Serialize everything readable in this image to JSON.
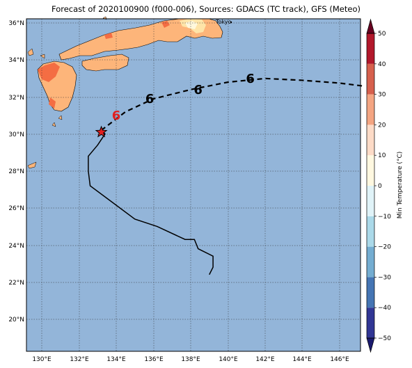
{
  "title": "Forecast of 2020100900 (f000-006), Sources: GDACS (TC track), GFS (Meteo)",
  "map": {
    "lon_ticks": [
      "130°E",
      "132°E",
      "134°E",
      "136°E",
      "138°E",
      "140°E",
      "142°E",
      "144°E",
      "146°E"
    ],
    "lat_ticks": [
      "36°N",
      "34°N",
      "32°N",
      "30°N",
      "28°N",
      "26°N",
      "24°N",
      "22°N",
      "20°N"
    ],
    "city_label": "Tokyo",
    "colors": {
      "ocean": "#93b5d9",
      "land_warm": "#fdb57a",
      "land_hot": "#f46d43",
      "land_cool": "#fee4a8",
      "land_cold": "#fff8dc"
    }
  },
  "track": {
    "observed_lonlat": [
      [
        139.0,
        22.4
      ],
      [
        139.2,
        22.8
      ],
      [
        139.2,
        23.3
      ],
      [
        139.2,
        23.4
      ],
      [
        138.4,
        23.8
      ],
      [
        138.2,
        24.3
      ],
      [
        137.7,
        24.3
      ],
      [
        136.2,
        25.0
      ],
      [
        135.0,
        25.4
      ],
      [
        133.8,
        26.3
      ],
      [
        132.6,
        27.2
      ],
      [
        132.5,
        28.0
      ],
      [
        132.5,
        28.8
      ],
      [
        133.0,
        29.4
      ],
      [
        133.4,
        30.0
      ],
      [
        133.2,
        30.2
      ]
    ],
    "forecast_lonlat": [
      [
        133.2,
        30.2
      ],
      [
        134.5,
        31.2
      ],
      [
        136,
        31.9
      ],
      [
        138,
        32.4
      ],
      [
        140,
        32.8
      ],
      [
        142,
        33.0
      ],
      [
        144,
        32.9
      ],
      [
        146,
        32.75
      ],
      [
        147.2,
        32.6
      ]
    ],
    "current_position": [
      133.2,
      30.1
    ],
    "symbols": [
      {
        "lonlat": [
          134.0,
          31.0
        ],
        "color": "#e02020"
      },
      {
        "lonlat": [
          135.8,
          31.9
        ],
        "color": "#000000"
      },
      {
        "lonlat": [
          138.4,
          32.4
        ],
        "color": "#000000"
      },
      {
        "lonlat": [
          141.2,
          33.0
        ],
        "color": "#000000"
      }
    ]
  },
  "colorbar": {
    "label": "Min Temperature (°C)",
    "ticks": [
      "50",
      "40",
      "30",
      "20",
      "10",
      "0",
      "−10",
      "−20",
      "−30",
      "−40",
      "−50"
    ],
    "colors": [
      "#67001f",
      "#b2182b",
      "#d6604d",
      "#f4a582",
      "#fddbc7",
      "#fff8e0",
      "#e0f3f8",
      "#abd9e9",
      "#74add1",
      "#4575b4",
      "#313695"
    ]
  }
}
